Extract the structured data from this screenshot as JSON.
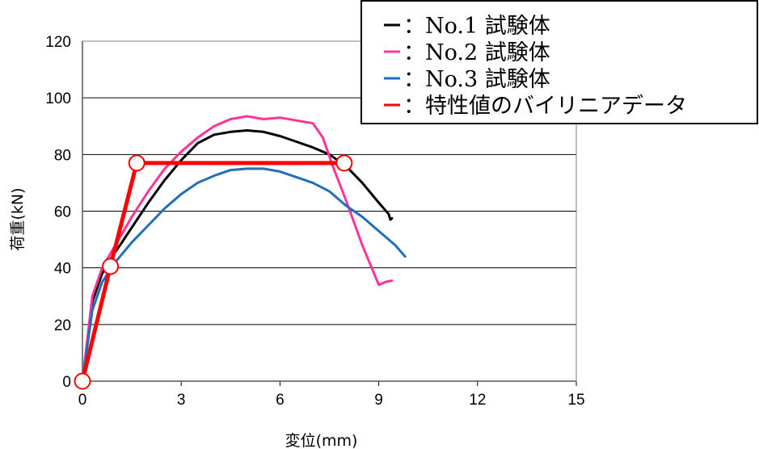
{
  "chart_data": {
    "type": "line",
    "xlabel": "変位(mm)",
    "ylabel": "荷重(kN)",
    "xlim": [
      0,
      15
    ],
    "ylim": [
      0,
      120
    ],
    "xticks": [
      "0",
      "3",
      "6",
      "9",
      "12",
      "15"
    ],
    "yticks": [
      "0",
      "20",
      "40",
      "60",
      "80",
      "100",
      "120"
    ],
    "grid": "horizontal",
    "legend_position": "top-right",
    "series": [
      {
        "name": "：No.1 試験体",
        "color": "#000000",
        "x": [
          0,
          0.3,
          0.6,
          0.9,
          1.2,
          1.6,
          2.0,
          2.5,
          3.0,
          3.5,
          4.0,
          4.5,
          5.0,
          5.5,
          6.0,
          6.5,
          7.0,
          7.5,
          8.0,
          8.5,
          9.0,
          9.3,
          9.35,
          9.4
        ],
        "values": [
          0,
          28,
          38,
          44,
          49,
          56,
          63,
          71,
          78,
          84,
          87,
          88,
          88.5,
          88,
          86.5,
          84.5,
          82.5,
          80,
          76,
          70,
          63,
          59,
          57,
          57.5
        ]
      },
      {
        "name": "：No.2 試験体",
        "color": "#ff3399",
        "x": [
          0,
          0.3,
          0.6,
          1.0,
          1.5,
          2.0,
          2.5,
          3.0,
          3.5,
          4.0,
          4.5,
          5.0,
          5.5,
          6.0,
          6.5,
          7.0,
          7.3,
          7.6,
          8.0,
          8.5,
          9.0,
          9.2,
          9.4
        ],
        "values": [
          0,
          30,
          40,
          48,
          58,
          67,
          75,
          81,
          86,
          90,
          92.5,
          93.5,
          92.5,
          93,
          92,
          91,
          86,
          76,
          64,
          48,
          34,
          35,
          35.5
        ]
      },
      {
        "name": "：No.3 試験体",
        "color": "#1f6fbd",
        "x": [
          0,
          0.3,
          0.6,
          1.0,
          1.5,
          2.0,
          2.5,
          3.0,
          3.5,
          4.0,
          4.5,
          5.0,
          5.5,
          6.0,
          6.5,
          7.0,
          7.5,
          8.0,
          8.5,
          9.0,
          9.5,
          9.8
        ],
        "values": [
          0,
          25,
          35,
          42,
          49,
          55,
          61,
          66,
          70,
          72.5,
          74.5,
          75,
          75,
          74,
          72,
          70,
          67,
          62,
          58,
          53,
          48,
          44
        ]
      },
      {
        "name": "：特性値のバイリニアデータ",
        "color": "#ff0000",
        "x": [
          0,
          0.85,
          1.65,
          7.95
        ],
        "values": [
          0,
          40.5,
          77,
          77
        ],
        "markers": true
      }
    ]
  }
}
